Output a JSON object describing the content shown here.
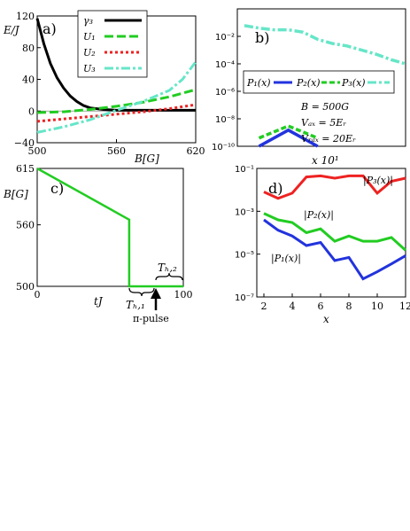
{
  "colors": {
    "black": "#000000",
    "green": "#22cc22",
    "red": "#ee2222",
    "cyan": "#66e6c8",
    "blue": "#2233dd"
  },
  "panels": {
    "a": {
      "label": "a)",
      "ylabel": "E/J",
      "xlabel": "B[G]",
      "xticks": [
        "500",
        "560",
        "620"
      ],
      "yticks": [
        "120",
        "80",
        "40",
        "0",
        "−40"
      ],
      "legend": [
        "γ₃",
        "U₁",
        "U₂",
        "U₃"
      ]
    },
    "b": {
      "label": "b)",
      "yticks": [
        "10⁻²",
        "10⁻⁴",
        "10⁻⁶",
        "10⁻⁸",
        "10⁻¹⁰"
      ],
      "xtick": "x 10¹",
      "legend": [
        "P₁(x)",
        "P₂(x)",
        "P₃(x)"
      ],
      "annotations": [
        "B = 500G",
        "Vₐₓ = 5Eᵣ",
        "Vᵣₐₓ = 20Eᵣ"
      ]
    },
    "c": {
      "label": "c)",
      "ylabel": "B[G]",
      "xlabel": "tJ",
      "xticks": [
        "0",
        "100"
      ],
      "yticks": [
        "615",
        "560",
        "500"
      ],
      "th1": "Tₕ,₁",
      "th2": "Tₕ,₂",
      "pulse": "π-pulse"
    },
    "d": {
      "label": "d)",
      "xlabel": "x",
      "xticks": [
        "2",
        "4",
        "6",
        "8",
        "10",
        "12"
      ],
      "yticks": [
        "10⁻¹",
        "10⁻³",
        "10⁻⁵",
        "10⁻⁷"
      ],
      "series_labels": [
        "|P₃(x)|",
        "|P₂(x)|",
        "|P₁(x)|"
      ]
    }
  },
  "chart_data": [
    {
      "type": "line",
      "panel": "a",
      "xlabel": "B[G]",
      "ylabel": "E/J",
      "xlim": [
        500,
        620
      ],
      "ylim": [
        -40,
        120
      ],
      "series": [
        {
          "name": "γ₃",
          "x": [
            500,
            505,
            510,
            515,
            520,
            525,
            530,
            535,
            540,
            550,
            560,
            580,
            600,
            620
          ],
          "y": [
            117,
            85,
            60,
            42,
            29,
            19,
            12,
            7,
            4,
            2,
            1,
            1,
            1,
            1
          ]
        },
        {
          "name": "U₁",
          "x": [
            500,
            520,
            540,
            560,
            580,
            600,
            620
          ],
          "y": [
            -2,
            -1,
            2,
            6,
            11,
            18,
            27
          ]
        },
        {
          "name": "U₂",
          "x": [
            500,
            520,
            540,
            560,
            580,
            600,
            620
          ],
          "y": [
            -13,
            -10,
            -7,
            -4,
            -1,
            3,
            8
          ]
        },
        {
          "name": "U₃",
          "x": [
            500,
            520,
            540,
            560,
            580,
            600,
            610,
            620
          ],
          "y": [
            -27,
            -20,
            -11,
            1,
            12,
            26,
            40,
            62
          ]
        }
      ]
    },
    {
      "type": "line",
      "panel": "b",
      "y_scale": "log",
      "ylim": [
        1e-10,
        1
      ],
      "series": [
        {
          "name": "P₁(x)",
          "x": [
            2,
            4,
            6
          ],
          "y": [
            1e-10,
            1.5e-09,
            1e-10
          ]
        },
        {
          "name": "P₂(x)",
          "x": [
            2,
            4,
            6
          ],
          "y": [
            4e-10,
            3e-09,
            4e-10
          ]
        },
        {
          "name": "P₃(x)",
          "x": [
            1,
            2,
            3,
            4,
            5,
            6,
            7,
            8,
            9,
            10,
            11,
            12
          ],
          "y": [
            0.06,
            0.04,
            0.03,
            0.03,
            0.02,
            0.006,
            0.003,
            0.002,
            0.001,
            0.0005,
            0.0002,
            0.0001
          ]
        }
      ]
    },
    {
      "type": "line",
      "panel": "c",
      "xlabel": "tJ",
      "ylabel": "B[G]",
      "xlim": [
        0,
        100
      ],
      "ylim": [
        500,
        615
      ],
      "series": [
        {
          "name": "B(t)",
          "x": [
            0,
            63,
            63,
            100
          ],
          "y": [
            615,
            565,
            500,
            500
          ]
        }
      ]
    },
    {
      "type": "line",
      "panel": "d",
      "xlabel": "x",
      "y_scale": "log",
      "xlim": [
        1.5,
        12
      ],
      "ylim": [
        1e-07,
        0.1
      ],
      "series": [
        {
          "name": "|P₃(x)|",
          "x": [
            2,
            3,
            4,
            5,
            6,
            7,
            8,
            9,
            10,
            11,
            12
          ],
          "y": [
            0.008,
            0.004,
            0.007,
            0.04,
            0.045,
            0.035,
            0.045,
            0.045,
            0.007,
            0.025,
            0.035
          ]
        },
        {
          "name": "|P₂(x)|",
          "x": [
            2,
            3,
            4,
            5,
            6,
            7,
            8,
            9,
            10,
            11,
            12
          ],
          "y": [
            0.0008,
            0.0004,
            0.0003,
            0.0001,
            0.00015,
            4e-05,
            7e-05,
            4e-05,
            4e-05,
            6e-05,
            1.5e-05
          ]
        },
        {
          "name": "|P₁(x)|",
          "x": [
            2,
            3,
            4,
            5,
            6,
            7,
            8,
            9,
            10,
            11,
            12
          ],
          "y": [
            0.0004,
            0.00013,
            7e-05,
            2.5e-05,
            3.5e-05,
            5e-06,
            7e-06,
            7e-07,
            1.5e-06,
            3.5e-06,
            8.5e-06
          ]
        }
      ]
    }
  ]
}
